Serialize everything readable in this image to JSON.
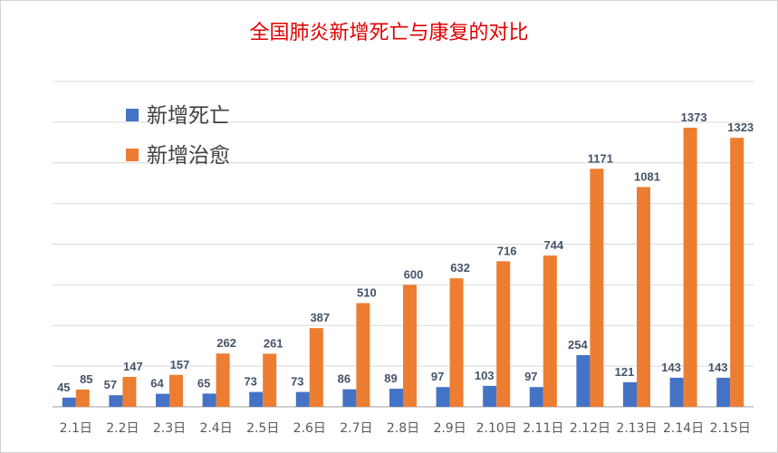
{
  "chart_data": {
    "type": "bar",
    "title": "全国肺炎新增死亡与康复的对比",
    "categories": [
      "2.1日",
      "2.2日",
      "2.3日",
      "2.4日",
      "2.5日",
      "2.6日",
      "2.7日",
      "2.8日",
      "2.9日",
      "2.10日",
      "2.11日",
      "2.12日",
      "2.13日",
      "2.14日",
      "2.15日"
    ],
    "series": [
      {
        "name": "新增死亡",
        "color": "#4472c4",
        "values": [
          45,
          57,
          64,
          65,
          73,
          73,
          86,
          89,
          97,
          103,
          97,
          254,
          121,
          143,
          143
        ]
      },
      {
        "name": "新增治愈",
        "color": "#ed7d31",
        "values": [
          85,
          147,
          157,
          262,
          261,
          387,
          510,
          600,
          632,
          716,
          744,
          1171,
          1081,
          1373,
          1323
        ]
      }
    ],
    "ylim": [
      0,
      1600
    ],
    "ytick_step": 200,
    "grid": true,
    "legend_position": "top-left",
    "data_labels": true
  }
}
